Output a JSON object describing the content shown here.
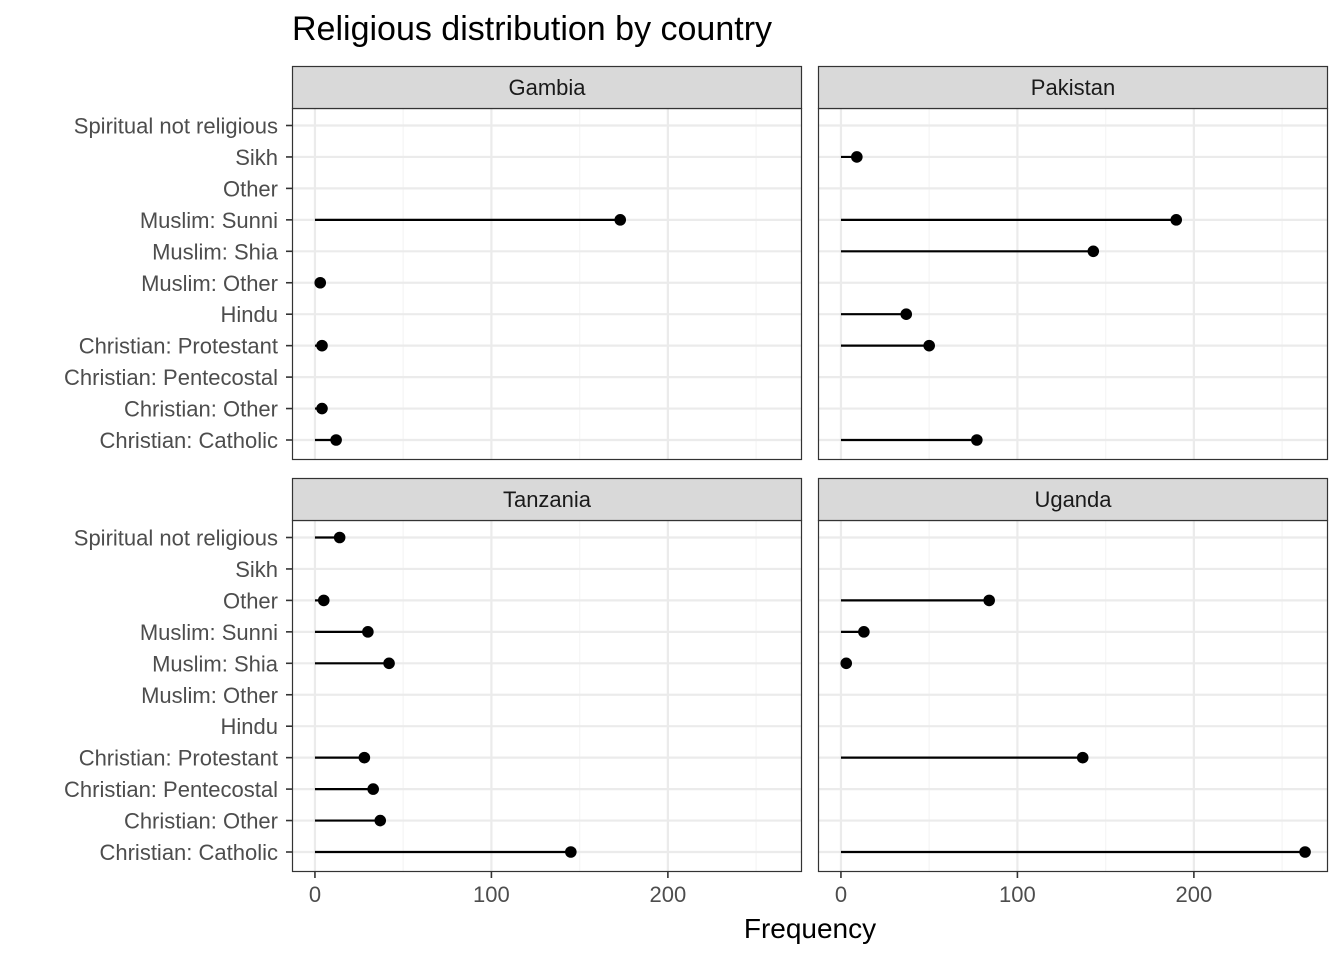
{
  "chart_data": {
    "type": "lollipop",
    "title": "Religious distribution by country",
    "xlabel": "Frequency",
    "ylabel": "",
    "xlim": [
      -13,
      276
    ],
    "x_ticks": [
      0,
      100,
      200
    ],
    "grid": true,
    "facet_layout": "2x2",
    "categories": [
      "Christian: Catholic",
      "Christian: Other",
      "Christian: Pentecostal",
      "Christian: Protestant",
      "Hindu",
      "Muslim: Other",
      "Muslim: Shia",
      "Muslim: Sunni",
      "Other",
      "Sikh",
      "Spiritual not religious"
    ],
    "panels": [
      {
        "name": "Gambia",
        "values": [
          12,
          4,
          null,
          4,
          null,
          3,
          null,
          173,
          null,
          null,
          null
        ]
      },
      {
        "name": "Pakistan",
        "values": [
          77,
          null,
          null,
          50,
          37,
          null,
          143,
          190,
          null,
          9,
          null
        ]
      },
      {
        "name": "Tanzania",
        "values": [
          145,
          37,
          33,
          28,
          null,
          null,
          42,
          30,
          5,
          null,
          14
        ]
      },
      {
        "name": "Uganda",
        "values": [
          263,
          null,
          null,
          137,
          null,
          null,
          3,
          13,
          84,
          null,
          null
        ]
      }
    ],
    "colors": {
      "strip_fill": "#d9d9d9",
      "panel_border": "#333333",
      "grid_major": "#ebebeb",
      "grid_minor": "#f5f5f5",
      "mark": "#000000"
    }
  }
}
